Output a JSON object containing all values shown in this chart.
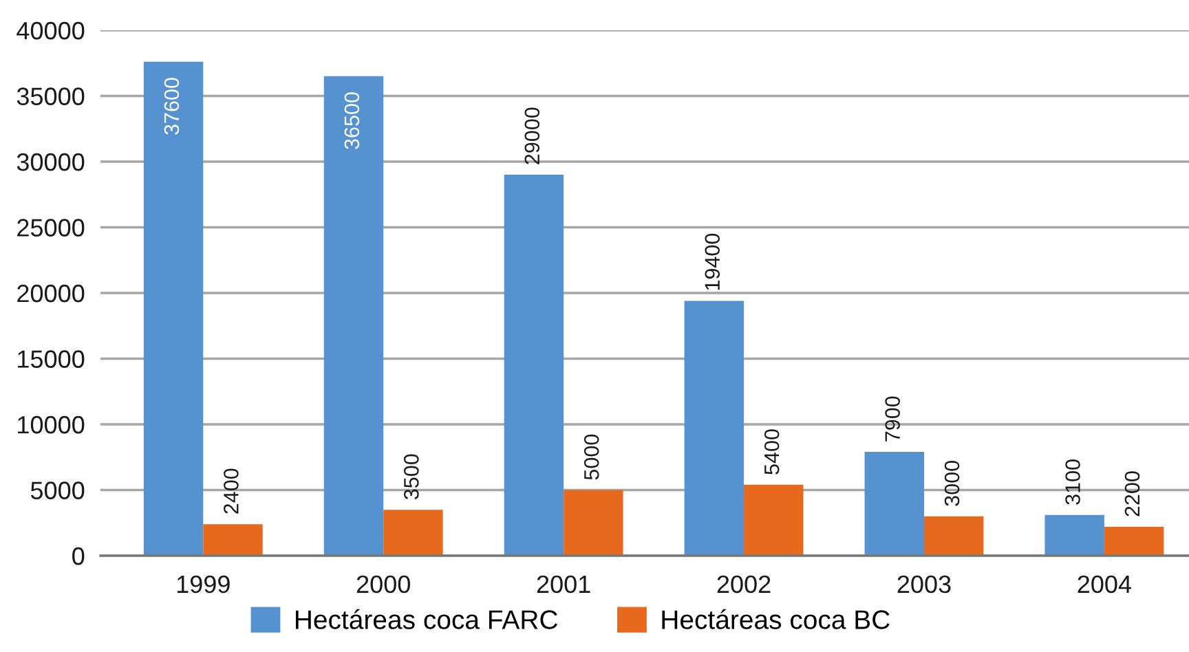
{
  "chart_data": {
    "type": "bar",
    "categories": [
      "1999",
      "2000",
      "2001",
      "2002",
      "2003",
      "2004"
    ],
    "series": [
      {
        "name": "Hectáreas coca FARC",
        "color": "#5592cf",
        "values": [
          37600,
          36500,
          29000,
          19400,
          7900,
          3100
        ]
      },
      {
        "name": "Hectáreas coca BC",
        "color": "#e6691e",
        "values": [
          2400,
          3500,
          5000,
          5400,
          3000,
          2200
        ]
      }
    ],
    "ylim": [
      0,
      40000
    ],
    "yticks": [
      0,
      5000,
      10000,
      15000,
      20000,
      25000,
      30000,
      35000,
      40000
    ],
    "grid": "y",
    "legend": "bottom",
    "data_labels": true
  }
}
